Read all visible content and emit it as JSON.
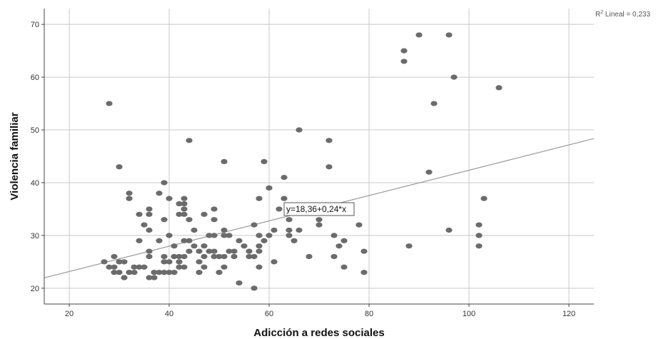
{
  "chart_data": {
    "type": "scatter",
    "title": "",
    "xlabel": "Adicción a redes sociales",
    "ylabel": "Violencia familiar",
    "xlim": [
      15,
      125
    ],
    "ylim": [
      17,
      73
    ],
    "x_ticks": [
      20,
      40,
      60,
      80,
      100,
      120
    ],
    "y_ticks": [
      20,
      30,
      40,
      50,
      60,
      70
    ],
    "grid": true,
    "point_color": "#6b6b6b",
    "fit_line_color": "#9a9a9a",
    "fit_line": {
      "intercept": 18.36,
      "slope": 0.24,
      "equation_label": "y=18,36+0,24*x",
      "r2_label_prefix": "R",
      "r2_label_suffix": " Lineal = 0,233"
    },
    "points": [
      [
        27,
        25
      ],
      [
        28,
        24
      ],
      [
        28,
        55
      ],
      [
        29,
        26
      ],
      [
        29,
        24
      ],
      [
        29,
        23
      ],
      [
        30,
        43
      ],
      [
        30,
        23
      ],
      [
        30,
        25
      ],
      [
        31,
        22
      ],
      [
        31,
        25
      ],
      [
        32,
        38
      ],
      [
        32,
        37
      ],
      [
        32,
        23
      ],
      [
        33,
        23
      ],
      [
        33,
        24
      ],
      [
        34,
        34
      ],
      [
        34,
        29
      ],
      [
        34,
        24
      ],
      [
        35,
        32
      ],
      [
        35,
        24
      ],
      [
        36,
        35
      ],
      [
        36,
        34
      ],
      [
        36,
        31
      ],
      [
        36,
        27
      ],
      [
        36,
        26
      ],
      [
        36,
        22
      ],
      [
        37,
        23
      ],
      [
        37,
        22
      ],
      [
        38,
        38
      ],
      [
        38,
        29
      ],
      [
        38,
        23
      ],
      [
        39,
        40
      ],
      [
        39,
        33
      ],
      [
        39,
        26
      ],
      [
        39,
        25
      ],
      [
        39,
        23
      ],
      [
        40,
        37
      ],
      [
        40,
        30
      ],
      [
        40,
        25
      ],
      [
        40,
        23
      ],
      [
        41,
        28
      ],
      [
        41,
        26
      ],
      [
        41,
        23
      ],
      [
        42,
        36
      ],
      [
        42,
        34
      ],
      [
        42,
        26
      ],
      [
        42,
        25
      ],
      [
        42,
        24
      ],
      [
        43,
        37
      ],
      [
        43,
        36
      ],
      [
        43,
        35
      ],
      [
        43,
        34
      ],
      [
        43,
        29
      ],
      [
        43,
        26
      ],
      [
        43,
        24
      ],
      [
        44,
        48
      ],
      [
        44,
        33
      ],
      [
        44,
        29
      ],
      [
        44,
        27
      ],
      [
        45,
        31
      ],
      [
        45,
        28
      ],
      [
        46,
        27
      ],
      [
        46,
        25
      ],
      [
        46,
        23
      ],
      [
        47,
        34
      ],
      [
        47,
        28
      ],
      [
        47,
        26
      ],
      [
        47,
        24
      ],
      [
        48,
        30
      ],
      [
        48,
        27
      ],
      [
        49,
        35
      ],
      [
        49,
        33
      ],
      [
        49,
        30
      ],
      [
        49,
        27
      ],
      [
        49,
        26
      ],
      [
        50,
        26
      ],
      [
        50,
        23
      ],
      [
        51,
        44
      ],
      [
        51,
        31
      ],
      [
        51,
        30
      ],
      [
        51,
        26
      ],
      [
        51,
        24
      ],
      [
        52,
        30
      ],
      [
        52,
        27
      ],
      [
        53,
        27
      ],
      [
        53,
        26
      ],
      [
        54,
        29
      ],
      [
        54,
        21
      ],
      [
        55,
        28
      ],
      [
        56,
        27
      ],
      [
        56,
        26
      ],
      [
        57,
        32
      ],
      [
        57,
        26
      ],
      [
        57,
        20
      ],
      [
        58,
        37
      ],
      [
        58,
        30
      ],
      [
        58,
        28
      ],
      [
        58,
        27
      ],
      [
        58,
        24
      ],
      [
        59,
        44
      ],
      [
        59,
        29
      ],
      [
        60,
        39
      ],
      [
        60,
        30
      ],
      [
        61,
        31
      ],
      [
        61,
        25
      ],
      [
        62,
        35
      ],
      [
        63,
        41
      ],
      [
        63,
        37
      ],
      [
        64,
        33
      ],
      [
        64,
        31
      ],
      [
        64,
        30
      ],
      [
        65,
        29
      ],
      [
        66,
        50
      ],
      [
        66,
        31
      ],
      [
        68,
        26
      ],
      [
        70,
        33
      ],
      [
        70,
        32
      ],
      [
        72,
        48
      ],
      [
        72,
        43
      ],
      [
        73,
        30
      ],
      [
        73,
        26
      ],
      [
        74,
        28
      ],
      [
        75,
        29
      ],
      [
        75,
        24
      ],
      [
        78,
        32
      ],
      [
        79,
        27
      ],
      [
        79,
        23
      ],
      [
        87,
        65
      ],
      [
        87,
        63
      ],
      [
        88,
        28
      ],
      [
        90,
        68
      ],
      [
        92,
        42
      ],
      [
        93,
        55
      ],
      [
        96,
        68
      ],
      [
        96,
        31
      ],
      [
        97,
        60
      ],
      [
        102,
        32
      ],
      [
        102,
        30
      ],
      [
        102,
        28
      ],
      [
        103,
        37
      ],
      [
        106,
        58
      ]
    ]
  }
}
